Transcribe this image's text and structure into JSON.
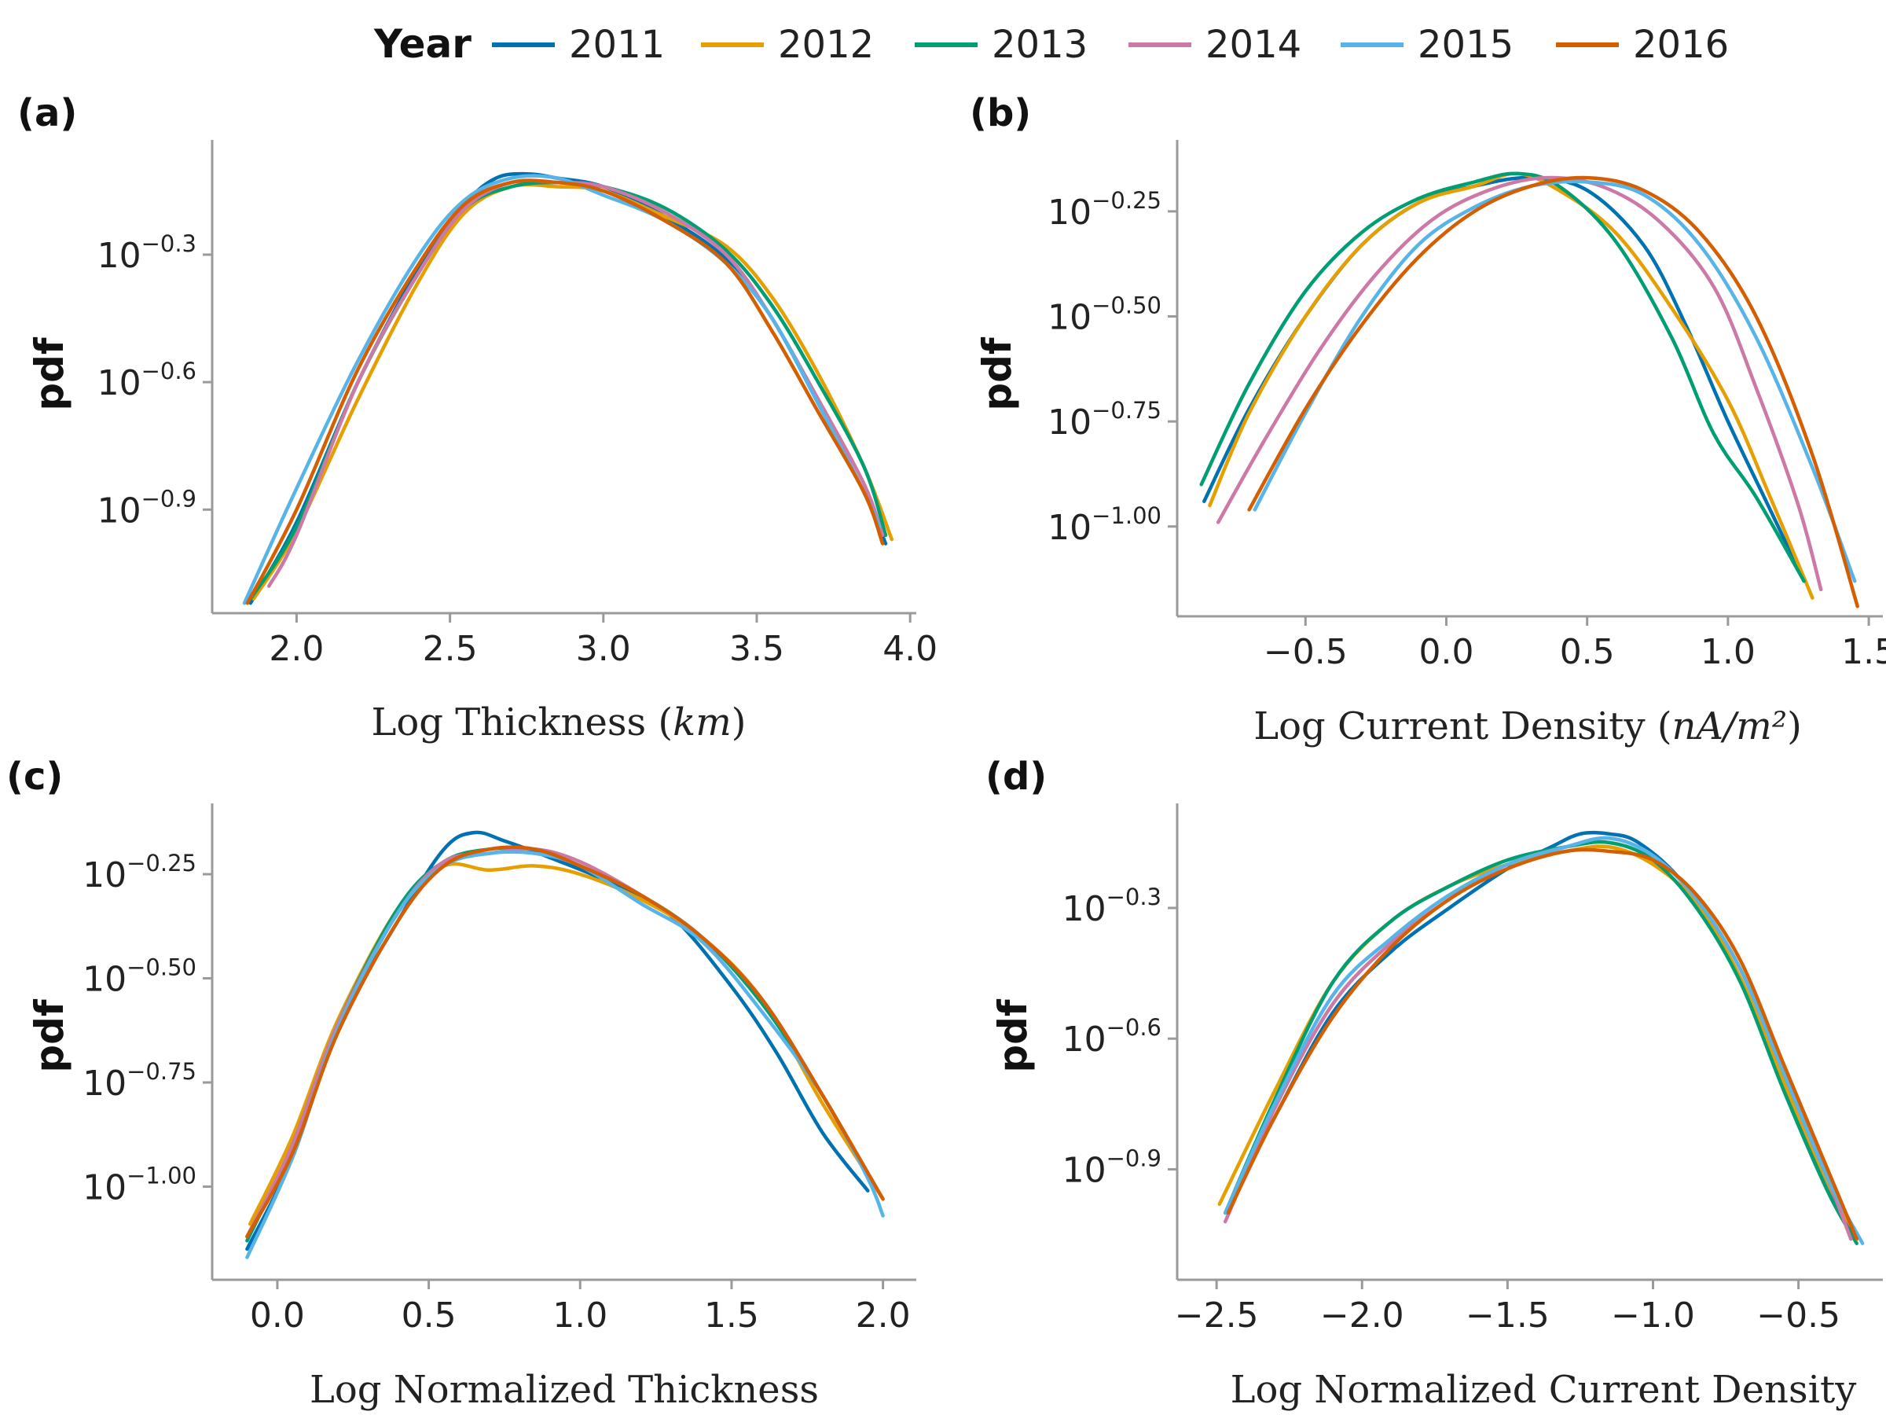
{
  "legend": {
    "title": "Year",
    "entries": [
      {
        "label": "2011",
        "color": "#0072b2"
      },
      {
        "label": "2012",
        "color": "#e69f00"
      },
      {
        "label": "2013",
        "color": "#009e73"
      },
      {
        "label": "2014",
        "color": "#cc79a7"
      },
      {
        "label": "2015",
        "color": "#56b4e9"
      },
      {
        "label": "2016",
        "color": "#d55e00"
      }
    ]
  },
  "chart_data": [
    {
      "panel": "(a)",
      "type": "line",
      "ylabel": "pdf",
      "xlabel": "Log Thickness",
      "xlabel_unit": "km",
      "xlim": [
        1.73,
        4.02
      ],
      "ylim": [
        -1.14,
        -0.03
      ],
      "xticks": [
        "2.0",
        "2.5",
        "3.0",
        "3.5",
        "4.0"
      ],
      "xtick_values": [
        2.0,
        2.5,
        3.0,
        3.5,
        4.0
      ],
      "yticks": [
        {
          "base": "10",
          "exp": "−0.3",
          "value": -0.3
        },
        {
          "base": "10",
          "exp": "−0.6",
          "value": -0.6
        },
        {
          "base": "10",
          "exp": "−0.9",
          "value": -0.9
        }
      ],
      "series": [
        {
          "name": "2011",
          "x": [
            1.85,
            2.0,
            2.2,
            2.4,
            2.55,
            2.65,
            2.75,
            2.85,
            3.0,
            3.2,
            3.4,
            3.55,
            3.7,
            3.85,
            3.92
          ],
          "y": [
            -1.12,
            -0.93,
            -0.6,
            -0.33,
            -0.18,
            -0.12,
            -0.11,
            -0.12,
            -0.14,
            -0.21,
            -0.31,
            -0.45,
            -0.65,
            -0.86,
            -0.98
          ]
        },
        {
          "name": "2012",
          "x": [
            1.86,
            2.0,
            2.2,
            2.4,
            2.55,
            2.7,
            2.85,
            3.0,
            3.2,
            3.4,
            3.55,
            3.7,
            3.85,
            3.94
          ],
          "y": [
            -1.11,
            -0.95,
            -0.64,
            -0.36,
            -0.2,
            -0.14,
            -0.14,
            -0.15,
            -0.21,
            -0.28,
            -0.4,
            -0.58,
            -0.8,
            -0.97
          ]
        },
        {
          "name": "2013",
          "x": [
            1.85,
            2.0,
            2.2,
            2.4,
            2.55,
            2.7,
            2.85,
            3.0,
            3.2,
            3.4,
            3.55,
            3.7,
            3.85,
            3.92
          ],
          "y": [
            -1.11,
            -0.94,
            -0.6,
            -0.34,
            -0.19,
            -0.14,
            -0.13,
            -0.14,
            -0.19,
            -0.29,
            -0.42,
            -0.6,
            -0.8,
            -0.96
          ]
        },
        {
          "name": "2014",
          "x": [
            1.91,
            2.0,
            2.2,
            2.4,
            2.55,
            2.7,
            2.85,
            3.0,
            3.2,
            3.4,
            3.55,
            3.7,
            3.85,
            3.91
          ],
          "y": [
            -1.08,
            -0.96,
            -0.6,
            -0.34,
            -0.19,
            -0.13,
            -0.13,
            -0.14,
            -0.2,
            -0.3,
            -0.45,
            -0.64,
            -0.84,
            -0.96
          ]
        },
        {
          "name": "2015",
          "x": [
            1.83,
            2.0,
            2.2,
            2.4,
            2.55,
            2.7,
            2.85,
            3.0,
            3.2,
            3.4,
            3.55,
            3.7,
            3.85,
            3.9
          ],
          "y": [
            -1.12,
            -0.85,
            -0.55,
            -0.3,
            -0.17,
            -0.12,
            -0.12,
            -0.16,
            -0.22,
            -0.32,
            -0.45,
            -0.65,
            -0.86,
            -0.94
          ]
        },
        {
          "name": "2016",
          "x": [
            1.84,
            2.0,
            2.2,
            2.4,
            2.55,
            2.7,
            2.85,
            3.0,
            3.2,
            3.4,
            3.55,
            3.7,
            3.85,
            3.91
          ],
          "y": [
            -1.12,
            -0.9,
            -0.57,
            -0.32,
            -0.18,
            -0.13,
            -0.13,
            -0.15,
            -0.22,
            -0.32,
            -0.48,
            -0.67,
            -0.86,
            -0.98
          ]
        }
      ]
    },
    {
      "panel": "(b)",
      "type": "line",
      "ylabel": "pdf",
      "xlabel": "Log Current Density",
      "xlabel_unit": "nA/m²",
      "xlim": [
        -0.95,
        1.55
      ],
      "ylim": [
        -1.21,
        -0.08
      ],
      "xticks": [
        "−0.5",
        "0.0",
        "0.5",
        "1.0",
        "1.5"
      ],
      "xtick_values": [
        -0.5,
        0.0,
        0.5,
        1.0,
        1.5
      ],
      "yticks": [
        {
          "base": "10",
          "exp": "−0.25",
          "value": -0.25
        },
        {
          "base": "10",
          "exp": "−0.50",
          "value": -0.5
        },
        {
          "base": "10",
          "exp": "−0.75",
          "value": -0.75
        },
        {
          "base": "10",
          "exp": "−1.00",
          "value": -1.0
        }
      ],
      "series": [
        {
          "name": "2011",
          "x": [
            -0.86,
            -0.7,
            -0.5,
            -0.3,
            -0.1,
            0.1,
            0.3,
            0.5,
            0.7,
            0.85,
            1.0,
            1.15,
            1.27
          ],
          "y": [
            -0.94,
            -0.72,
            -0.5,
            -0.33,
            -0.23,
            -0.19,
            -0.17,
            -0.2,
            -0.33,
            -0.52,
            -0.75,
            -0.96,
            -1.13
          ]
        },
        {
          "name": "2012",
          "x": [
            -0.84,
            -0.7,
            -0.5,
            -0.3,
            -0.1,
            0.1,
            0.25,
            0.4,
            0.6,
            0.8,
            1.0,
            1.15,
            1.3
          ],
          "y": [
            -0.95,
            -0.73,
            -0.5,
            -0.33,
            -0.23,
            -0.19,
            -0.16,
            -0.2,
            -0.3,
            -0.48,
            -0.7,
            -0.93,
            -1.17
          ]
        },
        {
          "name": "2013",
          "x": [
            -0.87,
            -0.7,
            -0.5,
            -0.3,
            -0.1,
            0.1,
            0.25,
            0.4,
            0.6,
            0.8,
            0.95,
            1.1,
            1.27
          ],
          "y": [
            -0.9,
            -0.66,
            -0.44,
            -0.3,
            -0.22,
            -0.18,
            -0.16,
            -0.19,
            -0.32,
            -0.55,
            -0.78,
            -0.93,
            -1.13
          ]
        },
        {
          "name": "2014",
          "x": [
            -0.81,
            -0.65,
            -0.45,
            -0.25,
            -0.05,
            0.15,
            0.35,
            0.55,
            0.75,
            0.95,
            1.1,
            1.25,
            1.33
          ],
          "y": [
            -0.99,
            -0.8,
            -0.58,
            -0.4,
            -0.27,
            -0.2,
            -0.17,
            -0.19,
            -0.27,
            -0.43,
            -0.67,
            -0.95,
            -1.15
          ]
        },
        {
          "name": "2015",
          "x": [
            -0.68,
            -0.5,
            -0.3,
            -0.1,
            0.1,
            0.3,
            0.5,
            0.7,
            0.9,
            1.1,
            1.3,
            1.45
          ],
          "y": [
            -0.96,
            -0.73,
            -0.5,
            -0.33,
            -0.24,
            -0.19,
            -0.18,
            -0.21,
            -0.33,
            -0.55,
            -0.86,
            -1.13
          ]
        },
        {
          "name": "2016",
          "x": [
            -0.7,
            -0.5,
            -0.3,
            -0.1,
            0.1,
            0.3,
            0.5,
            0.7,
            0.9,
            1.1,
            1.3,
            1.46
          ],
          "y": [
            -0.96,
            -0.72,
            -0.52,
            -0.36,
            -0.25,
            -0.19,
            -0.17,
            -0.2,
            -0.3,
            -0.5,
            -0.83,
            -1.19
          ]
        }
      ]
    },
    {
      "panel": "(c)",
      "type": "line",
      "ylabel": "pdf",
      "xlabel": "Log Normalized Thickness",
      "xlim": [
        -0.21,
        2.11
      ],
      "ylim": [
        -1.22,
        -0.08
      ],
      "xticks": [
        "0.0",
        "0.5",
        "1.0",
        "1.5",
        "2.0"
      ],
      "xtick_values": [
        0.0,
        0.5,
        1.0,
        1.5,
        2.0
      ],
      "yticks": [
        {
          "base": "10",
          "exp": "−0.25",
          "value": -0.25
        },
        {
          "base": "10",
          "exp": "−0.50",
          "value": -0.5
        },
        {
          "base": "10",
          "exp": "−0.75",
          "value": -0.75
        },
        {
          "base": "10",
          "exp": "−1.00",
          "value": -1.0
        }
      ],
      "series": [
        {
          "name": "2011",
          "x": [
            -0.1,
            0.05,
            0.2,
            0.4,
            0.55,
            0.65,
            0.75,
            0.9,
            1.1,
            1.3,
            1.5,
            1.65,
            1.8,
            1.95
          ],
          "y": [
            -1.15,
            -0.93,
            -0.62,
            -0.36,
            -0.19,
            -0.15,
            -0.17,
            -0.21,
            -0.27,
            -0.35,
            -0.52,
            -0.68,
            -0.87,
            -1.01
          ]
        },
        {
          "name": "2012",
          "x": [
            -0.09,
            0.05,
            0.2,
            0.4,
            0.55,
            0.7,
            0.85,
            1.0,
            1.2,
            1.4,
            1.6,
            1.8,
            2.0
          ],
          "y": [
            -1.09,
            -0.88,
            -0.6,
            -0.33,
            -0.23,
            -0.24,
            -0.23,
            -0.25,
            -0.31,
            -0.4,
            -0.55,
            -0.8,
            -1.03
          ]
        },
        {
          "name": "2013",
          "x": [
            -0.1,
            0.05,
            0.2,
            0.4,
            0.55,
            0.7,
            0.85,
            1.0,
            1.2,
            1.4,
            1.6,
            1.8,
            1.97
          ],
          "y": [
            -1.13,
            -0.9,
            -0.61,
            -0.33,
            -0.22,
            -0.19,
            -0.19,
            -0.23,
            -0.3,
            -0.4,
            -0.56,
            -0.78,
            -1.0
          ]
        },
        {
          "name": "2014",
          "x": [
            -0.1,
            0.05,
            0.2,
            0.4,
            0.55,
            0.7,
            0.85,
            1.0,
            1.2,
            1.4,
            1.6,
            1.8,
            1.97
          ],
          "y": [
            -1.12,
            -0.9,
            -0.61,
            -0.34,
            -0.22,
            -0.2,
            -0.19,
            -0.22,
            -0.3,
            -0.4,
            -0.55,
            -0.78,
            -1.0
          ]
        },
        {
          "name": "2015",
          "x": [
            -0.1,
            0.05,
            0.2,
            0.4,
            0.55,
            0.7,
            0.85,
            1.0,
            1.2,
            1.4,
            1.6,
            1.8,
            1.95,
            2.0
          ],
          "y": [
            -1.17,
            -0.93,
            -0.62,
            -0.34,
            -0.23,
            -0.2,
            -0.2,
            -0.23,
            -0.32,
            -0.41,
            -0.58,
            -0.78,
            -0.98,
            -1.07
          ]
        },
        {
          "name": "2016",
          "x": [
            -0.1,
            0.05,
            0.2,
            0.4,
            0.55,
            0.7,
            0.85,
            1.0,
            1.2,
            1.4,
            1.6,
            1.8,
            2.0
          ],
          "y": [
            -1.12,
            -0.92,
            -0.63,
            -0.36,
            -0.23,
            -0.19,
            -0.19,
            -0.23,
            -0.3,
            -0.4,
            -0.55,
            -0.78,
            -1.03
          ]
        }
      ]
    },
    {
      "panel": "(d)",
      "type": "line",
      "ylabel": "pdf",
      "xlabel": "Log Normalized Current Density",
      "xlim": [
        -2.63,
        -0.21
      ],
      "ylim": [
        -1.15,
        -0.06
      ],
      "xticks": [
        "−2.5",
        "−2.0",
        "−1.5",
        "−1.0",
        "−0.5"
      ],
      "xtick_values": [
        -2.5,
        -2.0,
        -1.5,
        -1.0,
        -0.5
      ],
      "yticks": [
        {
          "base": "10",
          "exp": "−0.3",
          "value": -0.3
        },
        {
          "base": "10",
          "exp": "−0.6",
          "value": -0.6
        },
        {
          "base": "10",
          "exp": "−0.9",
          "value": -0.9
        }
      ],
      "series": [
        {
          "name": "2011",
          "x": [
            -2.47,
            -2.3,
            -2.1,
            -1.9,
            -1.7,
            -1.5,
            -1.35,
            -1.25,
            -1.15,
            -1.05,
            -0.9,
            -0.75,
            -0.6,
            -0.45,
            -0.32
          ],
          "y": [
            -1.0,
            -0.78,
            -0.54,
            -0.4,
            -0.3,
            -0.21,
            -0.16,
            -0.13,
            -0.13,
            -0.15,
            -0.24,
            -0.4,
            -0.62,
            -0.86,
            -1.04
          ]
        },
        {
          "name": "2012",
          "x": [
            -2.49,
            -2.3,
            -2.1,
            -1.9,
            -1.7,
            -1.5,
            -1.3,
            -1.15,
            -1.0,
            -0.85,
            -0.7,
            -0.55,
            -0.4,
            -0.32
          ],
          "y": [
            -0.98,
            -0.72,
            -0.47,
            -0.33,
            -0.25,
            -0.2,
            -0.17,
            -0.16,
            -0.2,
            -0.29,
            -0.46,
            -0.7,
            -0.93,
            -1.03
          ]
        },
        {
          "name": "2013",
          "x": [
            -2.47,
            -2.3,
            -2.1,
            -1.9,
            -1.7,
            -1.5,
            -1.3,
            -1.15,
            -1.0,
            -0.85,
            -0.7,
            -0.55,
            -0.4,
            -0.3
          ],
          "y": [
            -1.0,
            -0.74,
            -0.47,
            -0.33,
            -0.25,
            -0.19,
            -0.16,
            -0.15,
            -0.19,
            -0.3,
            -0.47,
            -0.72,
            -0.95,
            -1.07
          ]
        },
        {
          "name": "2014",
          "x": [
            -2.47,
            -2.3,
            -2.1,
            -1.9,
            -1.7,
            -1.5,
            -1.3,
            -1.15,
            -1.0,
            -0.85,
            -0.7,
            -0.55,
            -0.4,
            -0.32
          ],
          "y": [
            -1.02,
            -0.76,
            -0.52,
            -0.38,
            -0.28,
            -0.2,
            -0.16,
            -0.14,
            -0.18,
            -0.28,
            -0.44,
            -0.68,
            -0.92,
            -1.06
          ]
        },
        {
          "name": "2015",
          "x": [
            -2.47,
            -2.3,
            -2.1,
            -1.9,
            -1.7,
            -1.5,
            -1.3,
            -1.15,
            -1.0,
            -0.85,
            -0.7,
            -0.55,
            -0.4,
            -0.28
          ],
          "y": [
            -1.0,
            -0.75,
            -0.5,
            -0.37,
            -0.27,
            -0.2,
            -0.16,
            -0.14,
            -0.18,
            -0.28,
            -0.44,
            -0.68,
            -0.92,
            -1.07
          ]
        },
        {
          "name": "2016",
          "x": [
            -2.46,
            -2.3,
            -2.1,
            -1.9,
            -1.7,
            -1.5,
            -1.3,
            -1.15,
            -1.0,
            -0.85,
            -0.7,
            -0.55,
            -0.4,
            -0.3
          ],
          "y": [
            -1.0,
            -0.78,
            -0.55,
            -0.39,
            -0.28,
            -0.21,
            -0.17,
            -0.17,
            -0.19,
            -0.27,
            -0.42,
            -0.66,
            -0.9,
            -1.06
          ]
        }
      ]
    }
  ]
}
